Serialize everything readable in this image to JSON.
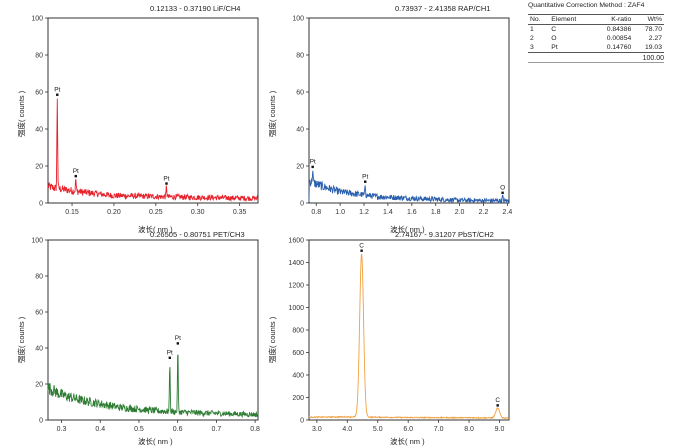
{
  "quant": {
    "title": "Quantitative Correction Method : ZAF4",
    "headers": [
      "No.",
      "Element",
      "K-ratio",
      "Wt%"
    ],
    "rows": [
      [
        "1",
        "C",
        "0.84386",
        "78.70"
      ],
      [
        "2",
        "O",
        "0.00854",
        "2.27"
      ],
      [
        "3",
        "Pt",
        "0.14760",
        "19.03"
      ]
    ],
    "total": "100.00"
  },
  "chart_data": [
    {
      "type": "line",
      "range_label": "0.12133 - 0.37190  LiF/CH4",
      "ylabel": "强度( counts )",
      "xlabel": "波长( nm )",
      "color": "#e8202a",
      "xlim": [
        0.12133,
        0.3719
      ],
      "ylim": [
        0,
        100
      ],
      "xticks": [
        "0.15",
        "0.20",
        "0.25",
        "0.30",
        "0.35"
      ],
      "yticks": [
        "0",
        "20",
        "40",
        "60",
        "80",
        "100"
      ],
      "baseline": [
        [
          0.121,
          9
        ],
        [
          0.13,
          8
        ],
        [
          0.16,
          6
        ],
        [
          0.2,
          4
        ],
        [
          0.25,
          3.5
        ],
        [
          0.3,
          3
        ],
        [
          0.372,
          2.5
        ]
      ],
      "peaks": [
        {
          "x": 0.1324,
          "y": 57,
          "label": "Pt"
        },
        {
          "x": 0.1545,
          "y": 13,
          "label": "Pt"
        },
        {
          "x": 0.2627,
          "y": 9,
          "label": "Pt"
        }
      ]
    },
    {
      "type": "line",
      "range_label": "0.73937 - 2.41358  RAP/CH1",
      "ylabel": "强度( counts )",
      "xlabel": "波长( nm )",
      "color": "#2a5fad",
      "xlim": [
        0.73937,
        2.41358
      ],
      "ylim": [
        0,
        100
      ],
      "xticks": [
        "0.8",
        "1.0",
        "1.2",
        "1.4",
        "1.6",
        "1.8",
        "2.0",
        "2.2",
        "2.4"
      ],
      "yticks": [
        "0",
        "20",
        "40",
        "60",
        "80",
        "100"
      ],
      "baseline": [
        [
          0.74,
          12
        ],
        [
          0.85,
          9
        ],
        [
          1.0,
          6
        ],
        [
          1.3,
          3.5
        ],
        [
          1.6,
          2.5
        ],
        [
          2.0,
          1.5
        ],
        [
          2.414,
          1.2
        ]
      ],
      "peaks": [
        {
          "x": 0.77,
          "y": 18,
          "label": "Pt"
        },
        {
          "x": 1.21,
          "y": 10,
          "label": "Pt"
        },
        {
          "x": 2.36,
          "y": 4,
          "label": "O"
        }
      ]
    },
    {
      "type": "line",
      "range_label": "0.26505 - 0.80751  PET/CH3",
      "ylabel": "强度( counts )",
      "xlabel": "波长( nm )",
      "color": "#2e7d34",
      "xlim": [
        0.26505,
        0.80751
      ],
      "ylim": [
        0,
        100
      ],
      "xticks": [
        "0.3",
        "0.4",
        "0.5",
        "0.6",
        "0.7",
        "0.8"
      ],
      "yticks": [
        "0",
        "20",
        "40",
        "60",
        "80",
        "100"
      ],
      "baseline": [
        [
          0.265,
          18
        ],
        [
          0.3,
          14
        ],
        [
          0.35,
          11
        ],
        [
          0.45,
          7
        ],
        [
          0.55,
          5
        ],
        [
          0.65,
          4
        ],
        [
          0.808,
          3
        ]
      ],
      "peaks": [
        {
          "x": 0.5797,
          "y": 33,
          "label": "Pt"
        },
        {
          "x": 0.6004,
          "y": 41,
          "label": "Pt"
        }
      ]
    },
    {
      "type": "line",
      "range_label": "2.74167 - 9.31207  PbST/CH2",
      "ylabel": "强度( counts )",
      "xlabel": "波长( nm )",
      "color": "#f0a040",
      "xlim": [
        2.74167,
        9.31207
      ],
      "ylim": [
        0,
        1600
      ],
      "xticks": [
        "3.0",
        "4.0",
        "5.0",
        "6.0",
        "7.0",
        "8.0",
        "9.0"
      ],
      "yticks": [
        "0",
        "200",
        "400",
        "600",
        "800",
        "1000",
        "1200",
        "1400",
        "1600"
      ],
      "baseline": [
        [
          2.74,
          25
        ],
        [
          4.0,
          28
        ],
        [
          6.0,
          22
        ],
        [
          8.0,
          20
        ],
        [
          9.31,
          18
        ]
      ],
      "peaks": [
        {
          "x": 4.47,
          "y": 1480,
          "label": "C",
          "width": 0.09
        },
        {
          "x": 8.94,
          "y": 105,
          "label": "C",
          "width": 0.09
        }
      ]
    }
  ]
}
